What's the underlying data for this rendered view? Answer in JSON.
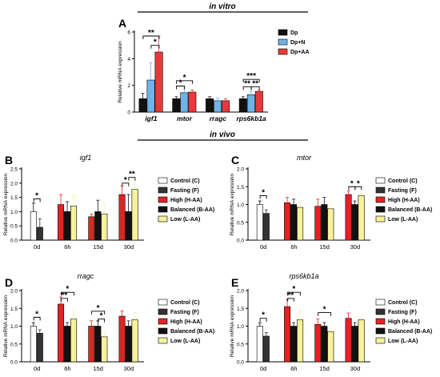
{
  "section_labels": {
    "top": "in vitro",
    "middle": "in vivo"
  },
  "colors": {
    "dp": "#111111",
    "dp_n": "#6fb3e8",
    "dp_aa": "#e8393a",
    "control": "#ffffff",
    "fasting": "#333333",
    "high": "#e02424",
    "balanced": "#111111",
    "low": "#f7f19a"
  },
  "panels": {
    "A": {
      "letter": "A",
      "title": ""
    },
    "B": {
      "letter": "B",
      "title": "igf1"
    },
    "C": {
      "letter": "C",
      "title": "mtor"
    },
    "D": {
      "letter": "D",
      "title": "rragc"
    },
    "E": {
      "letter": "E",
      "title": "rps6kb1a"
    }
  },
  "chart_data": [
    {
      "id": "A",
      "type": "bar",
      "ylabel": "Relative mRNA expression",
      "ylim": [
        0,
        6
      ],
      "yticks": [
        "0",
        "2",
        "4",
        "6"
      ],
      "categories": [
        "igf1",
        "mtor",
        "rragc",
        "rps6kb1a"
      ],
      "legend": [
        "Dp",
        "Dp+N",
        "Dp+AA"
      ],
      "legend_position": "right",
      "series": [
        {
          "name": "Dp",
          "values": [
            1.0,
            1.0,
            1.0,
            1.0
          ],
          "errors": [
            0.4,
            0.15,
            0.15,
            0.15
          ],
          "color": "#111111"
        },
        {
          "name": "Dp+N",
          "values": [
            2.4,
            1.45,
            0.85,
            1.3
          ],
          "errors": [
            1.3,
            0.35,
            0.2,
            0.25
          ],
          "color": "#6fb3e8"
        },
        {
          "name": "Dp+AA",
          "values": [
            4.5,
            1.5,
            0.85,
            1.55
          ],
          "errors": [
            1.2,
            0.15,
            0.15,
            0.1
          ],
          "color": "#e8393a"
        }
      ],
      "significance": [
        {
          "cat": 0,
          "from": 0,
          "to": 2,
          "label": "**",
          "level": 5.7
        },
        {
          "cat": 0,
          "from": 1,
          "to": 2,
          "label": "*",
          "level": 5.0
        },
        {
          "cat": 1,
          "from": 0,
          "to": 2,
          "label": "*",
          "level": 2.35
        },
        {
          "cat": 1,
          "from": 0,
          "to": 1,
          "label": "*",
          "level": 1.95
        },
        {
          "cat": 3,
          "from": 0,
          "to": 2,
          "label": "***",
          "level": 2.45
        },
        {
          "cat": 3,
          "from": 0,
          "to": 1,
          "label": "**",
          "level": 1.9
        },
        {
          "cat": 3,
          "from": 1,
          "to": 2,
          "label": "**",
          "level": 1.9
        }
      ]
    },
    {
      "id": "B",
      "type": "bar",
      "title": "igf1",
      "ylabel": "Relative mRNA expression",
      "ylim": [
        0,
        2.5
      ],
      "yticks": [
        "0.0",
        "0.5",
        "1.0",
        "1.5",
        "2.0",
        "2.5"
      ],
      "categories": [
        "0d",
        "6h",
        "15d",
        "30d"
      ],
      "legend": [
        "Control (C)",
        "Fasting (F)",
        "High (H-AA)",
        "Balanced (B-AA)",
        "Low (L-AA)"
      ],
      "legend_position": "right",
      "series": [
        {
          "name": "Control (C)",
          "values": [
            1.0,
            null,
            null,
            null
          ],
          "errors": [
            0.3,
            null,
            null,
            null
          ],
          "color": "#ffffff"
        },
        {
          "name": "Fasting (F)",
          "values": [
            0.45,
            null,
            null,
            null
          ],
          "errors": [
            0.3,
            null,
            null,
            null
          ],
          "color": "#333333"
        },
        {
          "name": "High (H-AA)",
          "values": [
            null,
            1.25,
            0.82,
            1.6
          ],
          "errors": [
            null,
            0.35,
            0.1,
            0.3
          ],
          "color": "#e02424"
        },
        {
          "name": "Balanced (B-AA)",
          "values": [
            null,
            1.0,
            1.0,
            1.0
          ],
          "errors": [
            null,
            0.35,
            0.4,
            0.6
          ],
          "color": "#111111"
        },
        {
          "name": "Low (L-AA)",
          "values": [
            null,
            1.2,
            0.92,
            1.78
          ],
          "errors": [
            null,
            0.35,
            0.35,
            0.3
          ],
          "color": "#f7f19a"
        }
      ],
      "significance": [
        {
          "cat": 0,
          "from": 0,
          "to": 1,
          "label": "*",
          "level": 1.45
        },
        {
          "cat": 3,
          "from": 2,
          "to": 3,
          "label": "*",
          "level": 2.0
        },
        {
          "cat": 3,
          "from": 3,
          "to": 4,
          "label": "**",
          "level": 2.2
        }
      ]
    },
    {
      "id": "C",
      "type": "bar",
      "title": "mtor",
      "ylabel": "Relative mRNA expression",
      "ylim": [
        0,
        2.0
      ],
      "yticks": [
        "0.0",
        "0.5",
        "1.0",
        "1.5",
        "2.0"
      ],
      "categories": [
        "0d",
        "6h",
        "15d",
        "30d"
      ],
      "legend": [
        "Control (C)",
        "Fasting (F)",
        "High (H-AA)",
        "Balanced (B-AA)",
        "Low (L-AA)"
      ],
      "legend_position": "right",
      "series": [
        {
          "name": "Control (C)",
          "values": [
            1.0,
            null,
            null,
            null
          ],
          "errors": [
            0.1,
            null,
            null,
            null
          ],
          "color": "#ffffff"
        },
        {
          "name": "Fasting (F)",
          "values": [
            0.75,
            null,
            null,
            null
          ],
          "errors": [
            0.1,
            null,
            null,
            null
          ],
          "color": "#333333"
        },
        {
          "name": "High (H-AA)",
          "values": [
            null,
            1.05,
            0.95,
            1.28
          ],
          "errors": [
            null,
            0.15,
            0.2,
            0.1
          ],
          "color": "#e02424"
        },
        {
          "name": "Balanced (B-AA)",
          "values": [
            null,
            1.0,
            1.0,
            1.0
          ],
          "errors": [
            null,
            0.15,
            0.2,
            0.1
          ],
          "color": "#111111"
        },
        {
          "name": "Low (L-AA)",
          "values": [
            null,
            0.92,
            0.88,
            1.25
          ],
          "errors": [
            null,
            0.15,
            0.2,
            0.1
          ],
          "color": "#f7f19a"
        }
      ],
      "significance": [
        {
          "cat": 0,
          "from": 0,
          "to": 1,
          "label": "*",
          "level": 1.25
        },
        {
          "cat": 3,
          "from": 2,
          "to": 3,
          "label": "*",
          "level": 1.5
        },
        {
          "cat": 3,
          "from": 3,
          "to": 4,
          "label": "*",
          "level": 1.5
        }
      ]
    },
    {
      "id": "D",
      "type": "bar",
      "title": "rragc",
      "ylabel": "Relative mRNA expression",
      "ylim": [
        0,
        2.0
      ],
      "yticks": [
        "0.0",
        "0.5",
        "1.0",
        "1.5",
        "2.0"
      ],
      "categories": [
        "0d",
        "6h",
        "15d",
        "30d"
      ],
      "legend": [
        "Control (C)",
        "Fasting (F)",
        "High (H-AA)",
        "Balanced (B-AA)",
        "Low (L-AA)"
      ],
      "legend_position": "right",
      "series": [
        {
          "name": "Control (C)",
          "values": [
            1.0,
            null,
            null,
            null
          ],
          "errors": [
            0.1,
            null,
            null,
            null
          ],
          "color": "#ffffff"
        },
        {
          "name": "Fasting (F)",
          "values": [
            0.8,
            null,
            null,
            null
          ],
          "errors": [
            0.1,
            null,
            null,
            null
          ],
          "color": "#333333"
        },
        {
          "name": "High (H-AA)",
          "values": [
            null,
            1.62,
            1.0,
            1.28
          ],
          "errors": [
            null,
            0.2,
            0.15,
            0.15
          ],
          "color": "#e02424"
        },
        {
          "name": "Balanced (B-AA)",
          "values": [
            null,
            1.0,
            1.0,
            1.0
          ],
          "errors": [
            null,
            0.1,
            0.15,
            0.15
          ],
          "color": "#111111"
        },
        {
          "name": "Low (L-AA)",
          "values": [
            null,
            1.2,
            0.7,
            1.18
          ],
          "errors": [
            null,
            0.25,
            0.1,
            0.2
          ],
          "color": "#f7f19a"
        }
      ],
      "significance": [
        {
          "cat": 0,
          "from": 0,
          "to": 1,
          "label": "*",
          "level": 1.25
        },
        {
          "cat": 1,
          "from": 2,
          "to": 4,
          "label": "*",
          "level": 1.95
        },
        {
          "cat": 1,
          "from": 2,
          "to": 3,
          "label": "**",
          "level": 1.78
        },
        {
          "cat": 2,
          "from": 2,
          "to": 4,
          "label": "*",
          "level": 1.42
        },
        {
          "cat": 2,
          "from": 3,
          "to": 4,
          "label": "*",
          "level": 1.2
        }
      ]
    },
    {
      "id": "E",
      "type": "bar",
      "title": "rps6kb1a",
      "ylabel": "Relative mRNA expression",
      "ylim": [
        0,
        2.0
      ],
      "yticks": [
        "0.0",
        "0.5",
        "1.0",
        "1.5",
        "2.0"
      ],
      "categories": [
        "0d",
        "6h",
        "15d",
        "30d"
      ],
      "legend": [
        "Control (C)",
        "Fasting (F)",
        "High (H-AA)",
        "Balanced (B-AA)",
        "Low (L-AA)"
      ],
      "legend_position": "right",
      "series": [
        {
          "name": "Control (C)",
          "values": [
            1.0,
            null,
            null,
            null
          ],
          "errors": [
            0.1,
            null,
            null,
            null
          ],
          "color": "#ffffff"
        },
        {
          "name": "Fasting (F)",
          "values": [
            0.72,
            null,
            null,
            null
          ],
          "errors": [
            0.1,
            null,
            null,
            null
          ],
          "color": "#333333"
        },
        {
          "name": "High (H-AA)",
          "values": [
            null,
            1.55,
            1.05,
            1.22
          ],
          "errors": [
            null,
            0.2,
            0.15,
            0.15
          ],
          "color": "#e02424"
        },
        {
          "name": "Balanced (B-AA)",
          "values": [
            null,
            1.0,
            1.0,
            1.0
          ],
          "errors": [
            null,
            0.1,
            0.1,
            0.1
          ],
          "color": "#111111"
        },
        {
          "name": "Low (L-AA)",
          "values": [
            null,
            1.18,
            0.85,
            1.18
          ],
          "errors": [
            null,
            0.25,
            0.1,
            0.05
          ],
          "color": "#f7f19a"
        }
      ],
      "significance": [
        {
          "cat": 0,
          "from": 0,
          "to": 1,
          "label": "*",
          "level": 1.22
        },
        {
          "cat": 1,
          "from": 2,
          "to": 4,
          "label": "*",
          "level": 1.95
        },
        {
          "cat": 1,
          "from": 2,
          "to": 3,
          "label": "**",
          "level": 1.78
        },
        {
          "cat": 2,
          "from": 2,
          "to": 4,
          "label": "*",
          "level": 1.38
        }
      ]
    }
  ]
}
